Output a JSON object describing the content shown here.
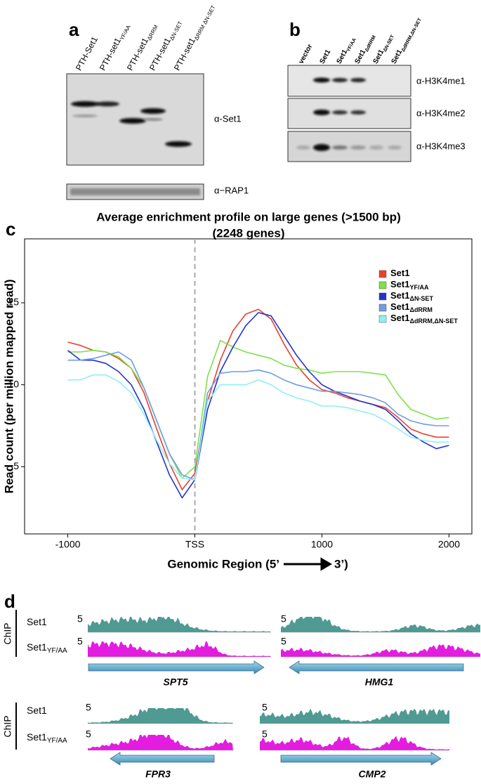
{
  "panel_a": {
    "label": "a",
    "lanes": [
      {
        "name": "PTH-Set1"
      },
      {
        "name": "PTH-set1",
        "sub": "YF/AA"
      },
      {
        "name": "PTH-set1",
        "sub": "ΔRRM"
      },
      {
        "name": "PTH-set1",
        "sub": "ΔN-SET"
      },
      {
        "name": "PTH-set1",
        "sub": "ΔRRM ΔN-SET"
      }
    ],
    "antibodies": [
      "α-Set1",
      "α−RAP1"
    ]
  },
  "panel_b": {
    "label": "b",
    "lanes": [
      {
        "name": "vector"
      },
      {
        "name": "Set1"
      },
      {
        "name": "Set1",
        "sub": "YF/AA"
      },
      {
        "name": "Set1",
        "sub": "ΔdRRM"
      },
      {
        "name": "Set1",
        "sub": "ΔN-SET"
      },
      {
        "name": "Set1",
        "sub": "ΔdRRM,ΔN-SET"
      }
    ],
    "antibodies": [
      "α-H3K4me1",
      "α-H3K4me2",
      "α-H3K4me3"
    ]
  },
  "chart_data": {
    "type": "line",
    "panel_label": "c",
    "title": [
      "Average enrichment profile on large genes (>1500 bp)",
      "(2248 genes)"
    ],
    "ylabel": "Read count (per million mapped read)",
    "xlabel": [
      "Genomic Region (5’",
      "3’)"
    ],
    "xlim": [
      -1340,
      2180
    ],
    "ylim": [
      0.9,
      18.9
    ],
    "xticks": [
      -1000,
      {
        "value": 0,
        "label": "TSS"
      },
      1000,
      2000
    ],
    "yticks": [
      5,
      10,
      15
    ],
    "x": [
      -1000,
      -900,
      -800,
      -700,
      -600,
      -500,
      -400,
      -300,
      -200,
      -100,
      0,
      100,
      200,
      300,
      400,
      500,
      600,
      700,
      800,
      900,
      1000,
      1100,
      1200,
      1300,
      1400,
      1500,
      1600,
      1700,
      1800,
      1900,
      2000
    ],
    "series": [
      {
        "name": "Set1",
        "color": "#e8422c",
        "values": [
          12.6,
          12.4,
          12.1,
          12.0,
          11.6,
          11.0,
          9.5,
          7.3,
          5.2,
          3.6,
          4.6,
          9.0,
          11.5,
          13.3,
          14.3,
          14.6,
          14.0,
          12.5,
          11.2,
          10.3,
          9.7,
          9.5,
          9.2,
          9.0,
          8.8,
          8.6,
          8.0,
          7.3,
          7.0,
          6.8,
          6.8
        ]
      },
      {
        "name": "Set1",
        "sub": "YF/AA",
        "color": "#7fe04a",
        "values": [
          12.0,
          12.0,
          12.1,
          12.0,
          11.7,
          11.0,
          9.8,
          7.8,
          5.8,
          4.3,
          5.0,
          10.5,
          12.7,
          12.3,
          12.0,
          11.8,
          11.6,
          11.2,
          11.0,
          10.9,
          10.7,
          10.8,
          10.8,
          10.8,
          10.7,
          10.6,
          9.4,
          8.5,
          8.2,
          7.9,
          8.0
        ]
      },
      {
        "name": "Set1",
        "sub": "ΔN-SET",
        "color": "#2233cc",
        "values": [
          12.1,
          11.5,
          11.5,
          11.3,
          10.8,
          10.0,
          8.5,
          6.5,
          4.5,
          3.1,
          4.2,
          8.5,
          10.8,
          12.3,
          13.6,
          14.4,
          14.2,
          13.0,
          11.8,
          10.8,
          10.0,
          9.6,
          9.3,
          9.0,
          8.8,
          8.5,
          7.8,
          7.0,
          6.5,
          6.1,
          6.3
        ]
      },
      {
        "name": "Set1",
        "sub": "ΔdRRM",
        "color": "#6f9de0",
        "values": [
          11.5,
          11.5,
          11.6,
          11.8,
          12.0,
          11.5,
          9.8,
          7.8,
          5.8,
          4.5,
          4.2,
          9.5,
          10.7,
          10.8,
          10.8,
          10.9,
          10.7,
          10.3,
          10.0,
          9.8,
          9.6,
          9.6,
          9.5,
          9.4,
          9.2,
          8.9,
          8.2,
          7.8,
          7.6,
          7.5,
          7.5
        ]
      },
      {
        "name": "Set1",
        "sub": "ΔdRRM,ΔN-SET",
        "color": "#8ff0f0",
        "values": [
          10.3,
          10.3,
          10.6,
          10.6,
          10.2,
          9.5,
          8.2,
          6.6,
          5.2,
          4.3,
          4.2,
          9.0,
          10.0,
          10.0,
          10.0,
          10.3,
          10.0,
          9.5,
          9.2,
          9.0,
          8.7,
          8.7,
          8.6,
          8.4,
          8.2,
          7.8,
          7.3,
          6.8,
          6.6,
          6.5,
          6.5
        ]
      }
    ]
  },
  "panel_d": {
    "label": "d",
    "chip": "ChIP",
    "samples": [
      {
        "name": "Set1"
      },
      {
        "name": "Set1",
        "sub": "YF/AA"
      }
    ],
    "scale": "5",
    "genes": [
      "SPT5",
      "HMG1",
      "FPR3",
      "CMP2"
    ]
  }
}
